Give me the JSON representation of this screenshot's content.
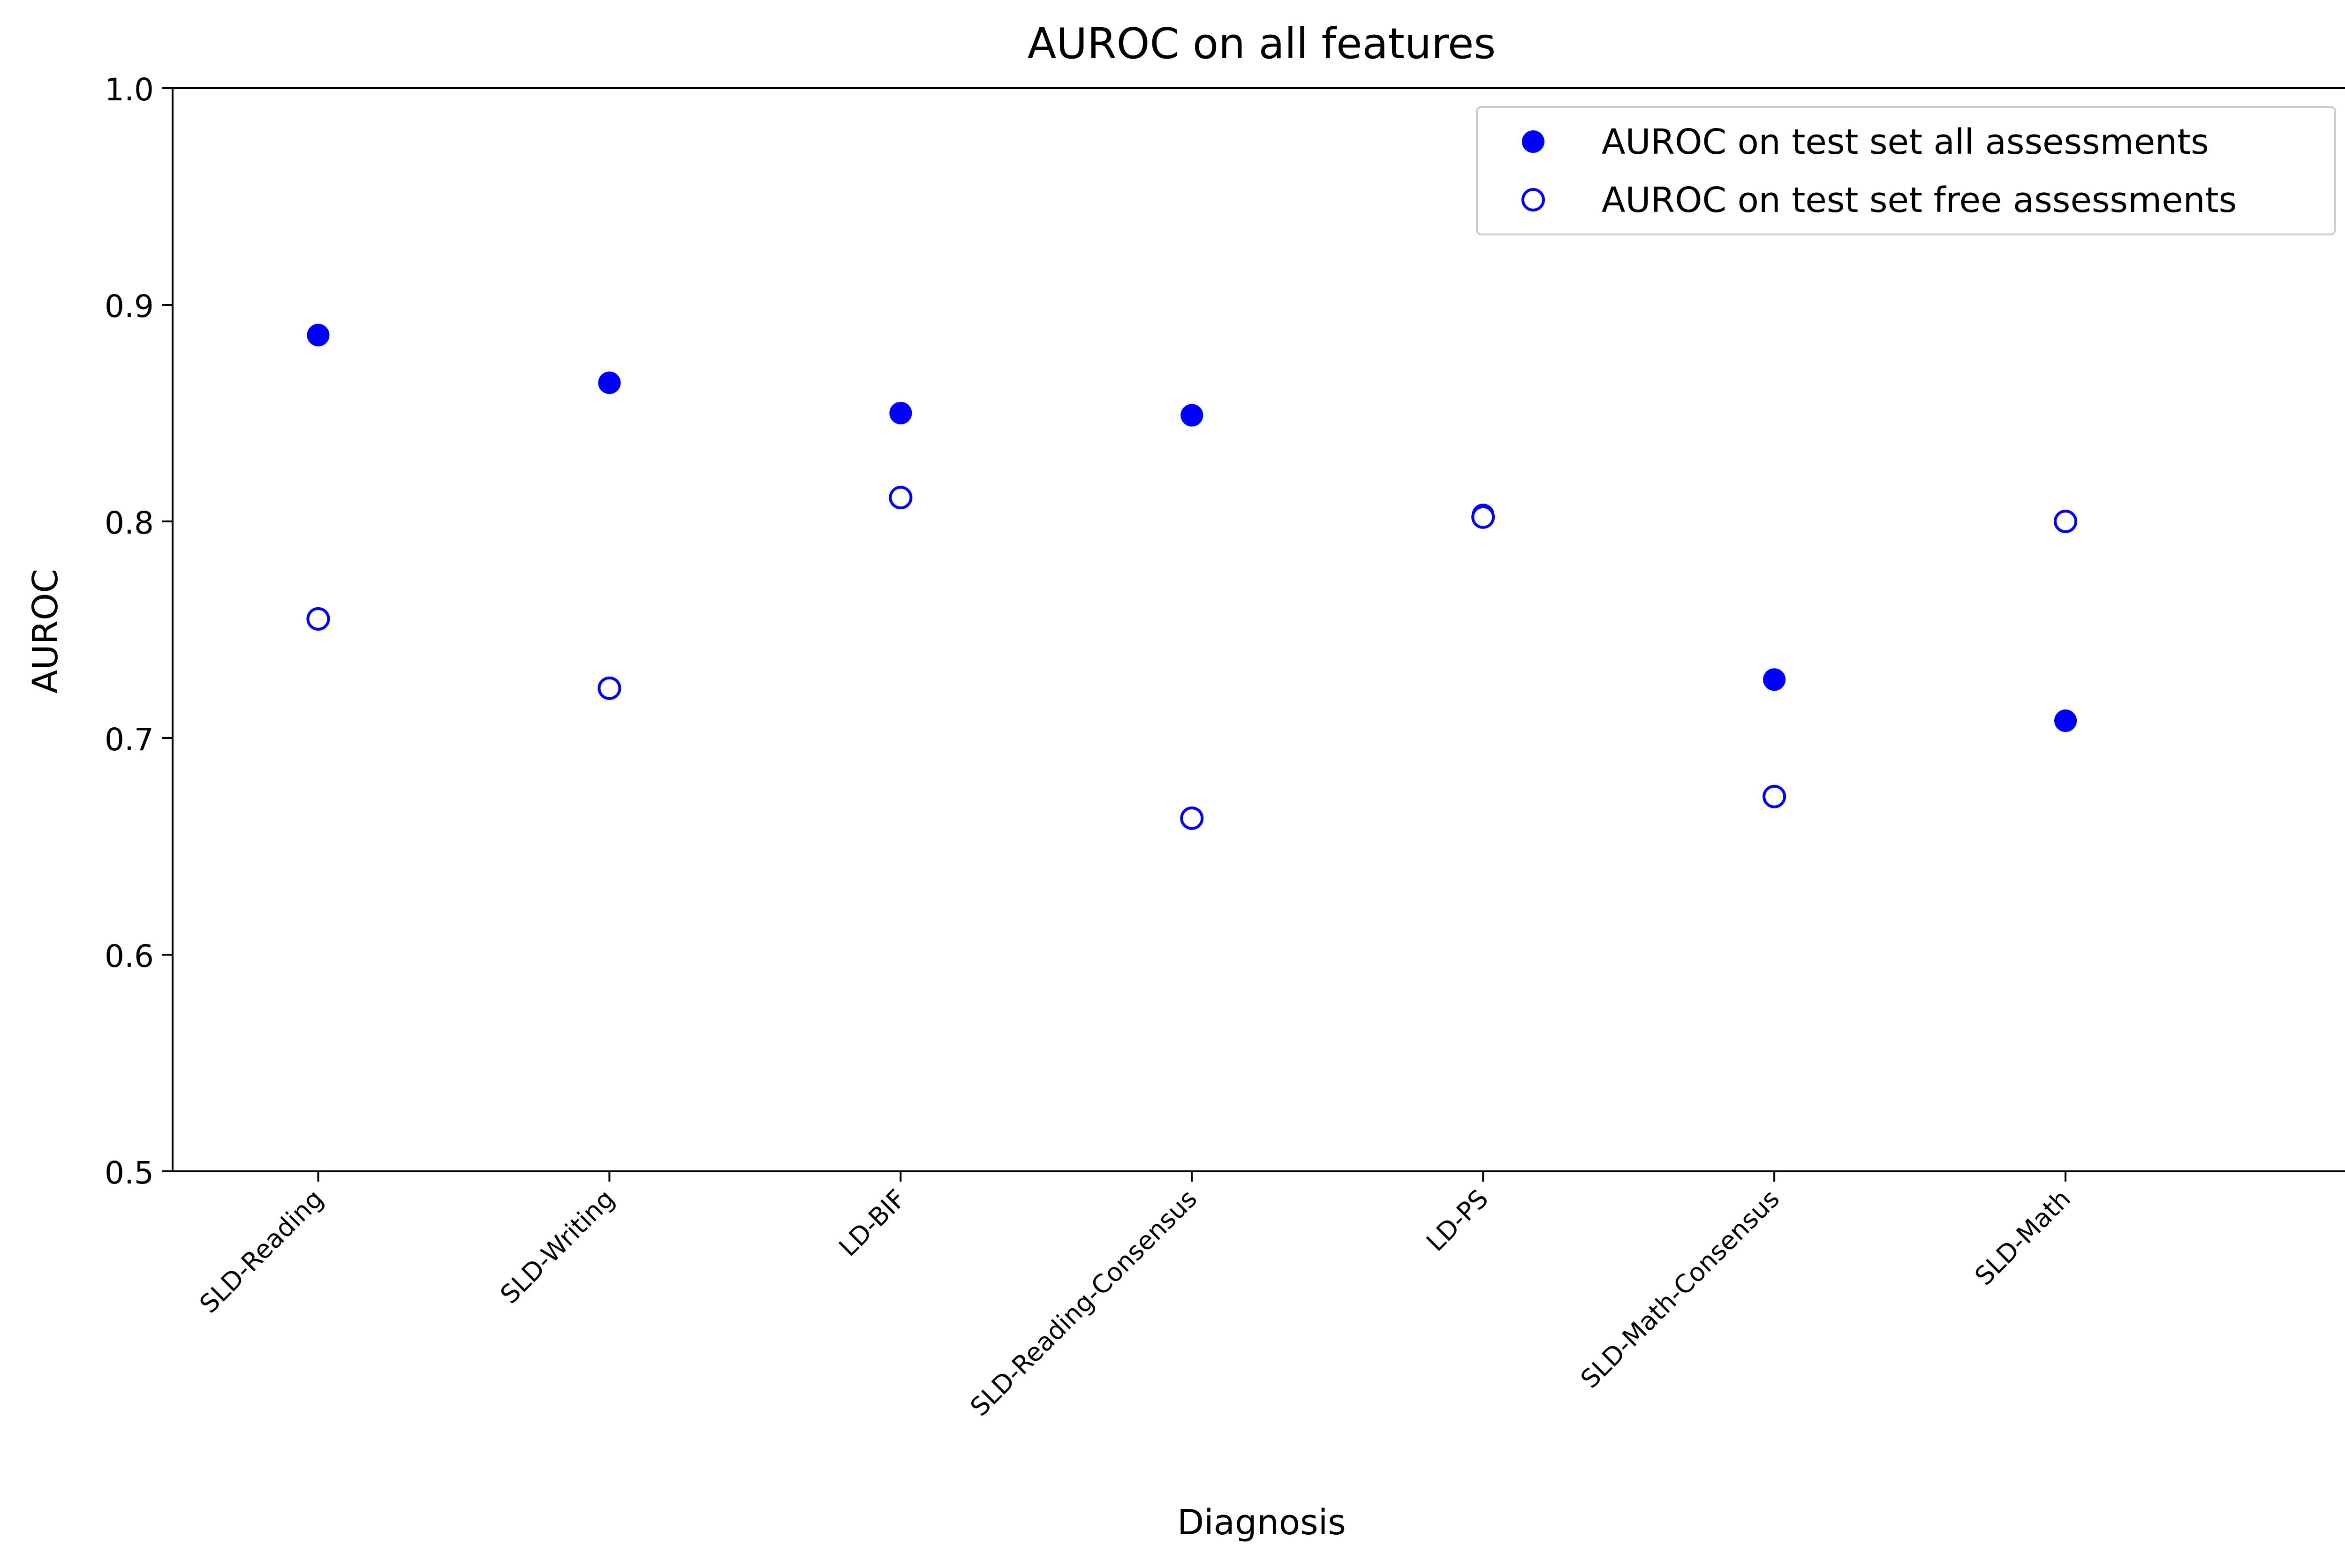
{
  "chart_data": {
    "type": "scatter",
    "title": "AUROC on all features",
    "xlabel": "Diagnosis",
    "ylabel": "AUROC",
    "categories": [
      "SLD-Reading",
      "SLD-Writing",
      "LD-BIF",
      "SLD-Reading-Consensus",
      "LD-PS",
      "SLD-Math-Consensus",
      "SLD-Math"
    ],
    "ylim": [
      0.5,
      1.0
    ],
    "yticks": [
      "0.5",
      "0.6",
      "0.7",
      "0.8",
      "0.9",
      "1.0"
    ],
    "grid": false,
    "legend_position": "top-right",
    "series": [
      {
        "name": "AUROC on test set all assessments",
        "marker": "filled-circle",
        "color": "#0000ff",
        "values": [
          0.886,
          0.864,
          0.85,
          0.849,
          0.803,
          0.727,
          0.708
        ]
      },
      {
        "name": "AUROC on test set free assessments",
        "marker": "open-circle",
        "color": "#0000ff",
        "values": [
          0.755,
          0.723,
          0.811,
          0.663,
          0.802,
          0.673,
          0.8
        ]
      }
    ]
  }
}
